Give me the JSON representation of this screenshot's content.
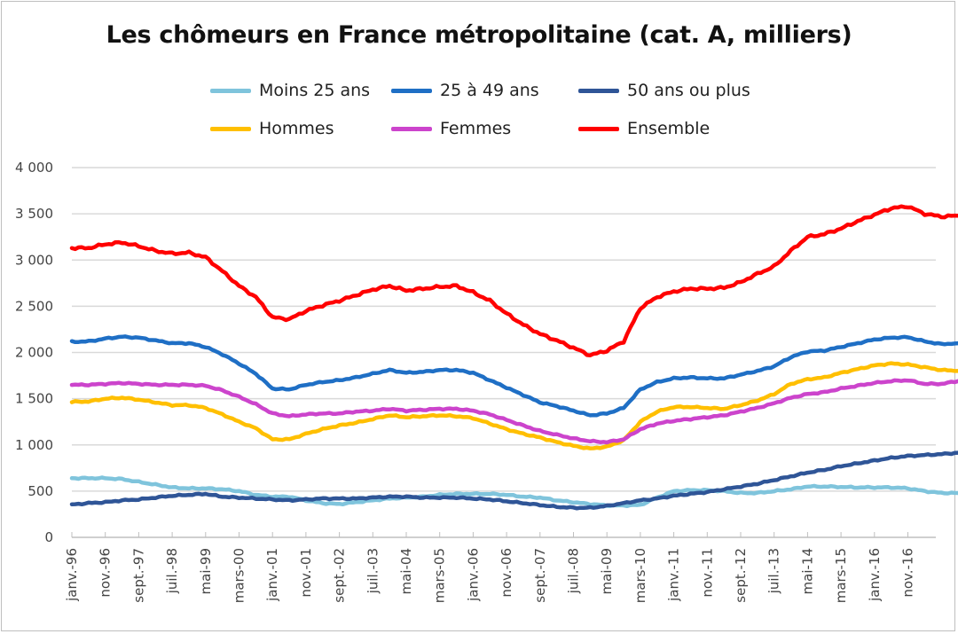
{
  "chart_data": {
    "type": "line",
    "title": "Les chômeurs en France métropolitaine  (cat. A, milliers)",
    "xlabel": "",
    "ylabel": "",
    "ylim": [
      0,
      4000
    ],
    "yticks": [
      0,
      500,
      1000,
      1500,
      2000,
      2500,
      3000,
      3500,
      4000
    ],
    "ytick_labels": [
      "0",
      "500",
      "1 000",
      "1 500",
      "2 000",
      "2 500",
      "3 000",
      "3 500",
      "4 000"
    ],
    "grid": true,
    "legend_position": "top",
    "x_tick_labels": [
      "janv.-96",
      "nov.-96",
      "sept.-97",
      "juil.-98",
      "mai-99",
      "mars-00",
      "janv.-01",
      "nov.-01",
      "sept.-02",
      "juil.-03",
      "mai-04",
      "mars-05",
      "janv.-06",
      "nov.-06",
      "sept.-07",
      "juil.-08",
      "mai-09",
      "mars-10",
      "janv.-11",
      "nov.-11",
      "sept.-12",
      "juil.-13",
      "mai-14",
      "mars-15",
      "janv.-16",
      "nov.-16"
    ],
    "x_unit": "months since janv.-96 (tick every 10 months)",
    "x": [
      0,
      5,
      10,
      15,
      20,
      25,
      30,
      35,
      40,
      45,
      50,
      55,
      60,
      65,
      70,
      75,
      80,
      85,
      90,
      95,
      100,
      105,
      110,
      115,
      120,
      125,
      130,
      135,
      140,
      145,
      150,
      155,
      160,
      165,
      170,
      175,
      180,
      185,
      190,
      195,
      200,
      205,
      210,
      215,
      220,
      225,
      230,
      235,
      240,
      245,
      250,
      255,
      260,
      265
    ],
    "series": [
      {
        "name": "Moins 25 ans",
        "color": "#7fc4dc",
        "values": [
          640,
          640,
          640,
          630,
          600,
          570,
          540,
          530,
          530,
          520,
          500,
          460,
          440,
          440,
          400,
          370,
          360,
          380,
          400,
          420,
          430,
          440,
          460,
          470,
          470,
          470,
          460,
          440,
          430,
          400,
          380,
          360,
          345,
          345,
          350,
          430,
          500,
          510,
          510,
          500,
          480,
          480,
          500,
          520,
          550,
          550,
          545,
          540,
          540,
          540,
          530,
          500,
          480,
          480
        ]
      },
      {
        "name": "25 à 49 ans",
        "color": "#1f6fc5",
        "values": [
          2115,
          2120,
          2150,
          2170,
          2160,
          2130,
          2100,
          2100,
          2060,
          1980,
          1880,
          1770,
          1610,
          1600,
          1650,
          1680,
          1700,
          1730,
          1770,
          1810,
          1780,
          1790,
          1810,
          1810,
          1780,
          1700,
          1620,
          1540,
          1460,
          1420,
          1370,
          1320,
          1340,
          1400,
          1600,
          1680,
          1720,
          1730,
          1720,
          1720,
          1760,
          1800,
          1850,
          1950,
          2010,
          2020,
          2060,
          2100,
          2140,
          2160,
          2165,
          2120,
          2090,
          2100
        ]
      },
      {
        "name": "50 ans ou plus",
        "color": "#2f5597",
        "values": [
          355,
          370,
          380,
          400,
          410,
          430,
          450,
          460,
          470,
          440,
          430,
          420,
          410,
          400,
          410,
          420,
          420,
          420,
          430,
          440,
          440,
          430,
          430,
          430,
          420,
          410,
          390,
          370,
          350,
          330,
          320,
          320,
          340,
          370,
          400,
          420,
          450,
          470,
          490,
          520,
          550,
          580,
          620,
          660,
          700,
          730,
          770,
          800,
          830,
          860,
          880,
          890,
          900,
          915
        ]
      },
      {
        "name": "Hommes",
        "color": "#ffbf00",
        "values": [
          1465,
          1470,
          1500,
          1510,
          1490,
          1460,
          1430,
          1430,
          1400,
          1330,
          1250,
          1180,
          1060,
          1060,
          1120,
          1170,
          1210,
          1240,
          1280,
          1320,
          1300,
          1310,
          1320,
          1310,
          1290,
          1230,
          1170,
          1120,
          1080,
          1030,
          990,
          960,
          980,
          1050,
          1250,
          1360,
          1410,
          1410,
          1400,
          1390,
          1430,
          1480,
          1550,
          1660,
          1710,
          1730,
          1780,
          1820,
          1860,
          1880,
          1870,
          1840,
          1810,
          1800
        ]
      },
      {
        "name": "Femmes",
        "color": "#cc44cc",
        "values": [
          1650,
          1650,
          1660,
          1670,
          1660,
          1650,
          1650,
          1650,
          1640,
          1590,
          1520,
          1440,
          1340,
          1310,
          1330,
          1340,
          1340,
          1360,
          1370,
          1390,
          1370,
          1380,
          1390,
          1390,
          1370,
          1330,
          1270,
          1210,
          1150,
          1110,
          1070,
          1040,
          1030,
          1060,
          1170,
          1230,
          1260,
          1280,
          1300,
          1320,
          1360,
          1400,
          1450,
          1510,
          1550,
          1570,
          1610,
          1640,
          1670,
          1690,
          1700,
          1660,
          1660,
          1690
        ]
      },
      {
        "name": "Ensemble",
        "color": "#ff0000",
        "values": [
          3130,
          3130,
          3170,
          3190,
          3150,
          3100,
          3070,
          3080,
          3030,
          2880,
          2720,
          2600,
          2380,
          2360,
          2450,
          2510,
          2560,
          2620,
          2680,
          2720,
          2670,
          2690,
          2710,
          2720,
          2650,
          2560,
          2420,
          2300,
          2200,
          2130,
          2050,
          1970,
          2020,
          2120,
          2480,
          2600,
          2660,
          2690,
          2690,
          2700,
          2760,
          2850,
          2930,
          3100,
          3250,
          3280,
          3340,
          3420,
          3490,
          3560,
          3580,
          3500,
          3470,
          3480
        ]
      }
    ]
  },
  "legend": {
    "items": [
      {
        "label": "Moins 25 ans",
        "color": "#7fc4dc"
      },
      {
        "label": "25 à 49 ans",
        "color": "#1f6fc5"
      },
      {
        "label": "50 ans ou plus",
        "color": "#2f5597"
      },
      {
        "label": "Hommes",
        "color": "#ffbf00"
      },
      {
        "label": "Femmes",
        "color": "#cc44cc"
      },
      {
        "label": "Ensemble",
        "color": "#ff0000"
      }
    ]
  }
}
